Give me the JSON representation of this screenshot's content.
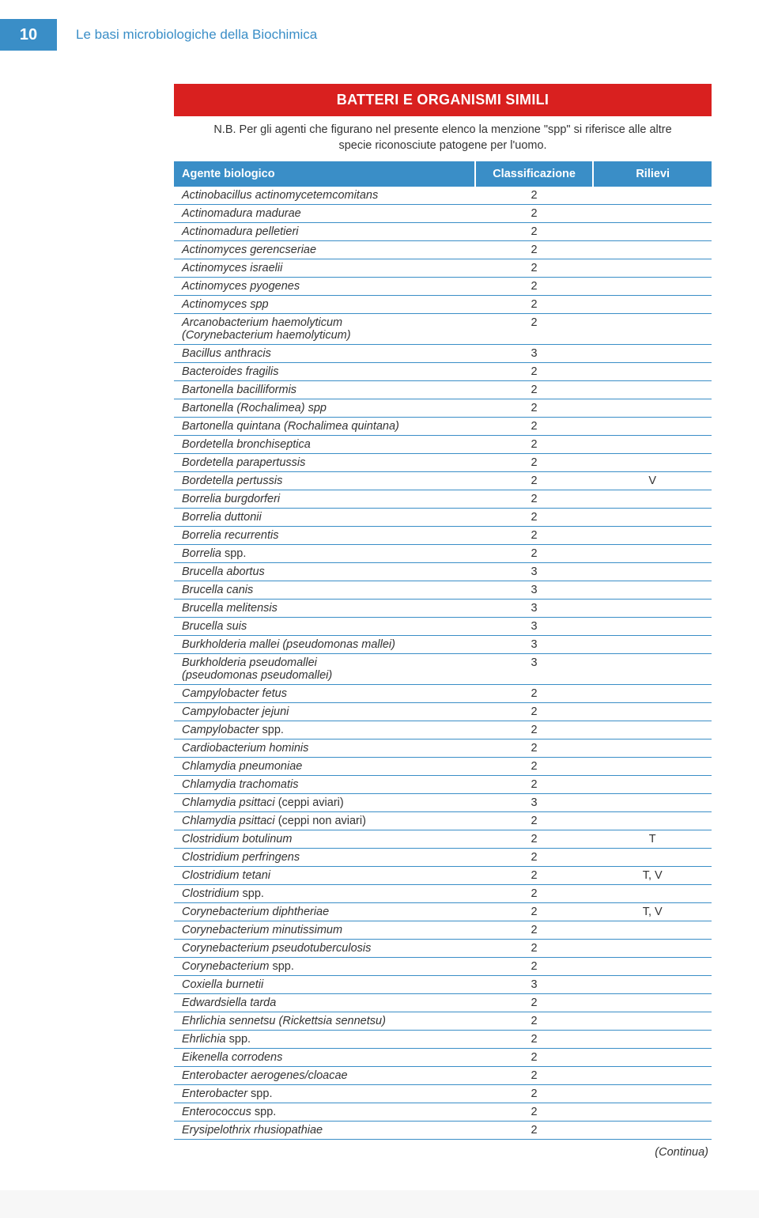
{
  "header": {
    "page_number": "10",
    "chapter_title": "Le basi microbiologiche della Biochimica"
  },
  "table": {
    "title_bar": "BATTERI E ORGANISMI SIMILI",
    "note": "N.B. Per gli agenti che figurano nel presente elenco la menzione \"spp\" si riferisce alle altre specie riconosciute patogene per l'uomo.",
    "columns": {
      "agent": "Agente biologico",
      "class": "Classificazione",
      "notes": "Rilievi"
    },
    "rows": [
      {
        "agent_it": "Actinobacillus actinomycetemcomitans",
        "class": "2",
        "rilievi": ""
      },
      {
        "agent_it": "Actinomadura madurae",
        "class": "2",
        "rilievi": ""
      },
      {
        "agent_it": "Actinomadura pelletieri",
        "class": "2",
        "rilievi": ""
      },
      {
        "agent_it": "Actinomyces gerencseriae",
        "class": "2",
        "rilievi": ""
      },
      {
        "agent_it": "Actinomyces israelii",
        "class": "2",
        "rilievi": ""
      },
      {
        "agent_it": "Actinomyces pyogenes",
        "class": "2",
        "rilievi": ""
      },
      {
        "agent_it": "Actinomyces spp",
        "class": "2",
        "rilievi": ""
      },
      {
        "agent_it": "Arcanobacterium haemolyticum",
        "agent_sub": "(Corynebacterium haemolyticum)",
        "class": "2",
        "rilievi": ""
      },
      {
        "agent_it": "Bacillus anthracis",
        "class": "3",
        "rilievi": ""
      },
      {
        "agent_it": "Bacteroides fragilis",
        "class": "2",
        "rilievi": ""
      },
      {
        "agent_it": "Bartonella bacilliformis",
        "class": "2",
        "rilievi": ""
      },
      {
        "agent_it": "Bartonella (Rochalimea) spp",
        "class": "2",
        "rilievi": ""
      },
      {
        "agent_it": "Bartonella quintana (Rochalimea quintana)",
        "class": "2",
        "rilievi": ""
      },
      {
        "agent_it": "Bordetella bronchiseptica",
        "class": "2",
        "rilievi": ""
      },
      {
        "agent_it": "Bordetella parapertussis",
        "class": "2",
        "rilievi": ""
      },
      {
        "agent_it": "Bordetella pertussis",
        "class": "2",
        "rilievi": "V"
      },
      {
        "agent_it": "Borrelia burgdorferi",
        "class": "2",
        "rilievi": ""
      },
      {
        "agent_it": "Borrelia duttonii",
        "class": "2",
        "rilievi": ""
      },
      {
        "agent_it": "Borrelia recurrentis",
        "class": "2",
        "rilievi": ""
      },
      {
        "agent_it": "Borrelia",
        "agent_roman": " spp.",
        "class": "2",
        "rilievi": ""
      },
      {
        "agent_it": "Brucella abortus",
        "class": "3",
        "rilievi": ""
      },
      {
        "agent_it": "Brucella canis",
        "class": "3",
        "rilievi": ""
      },
      {
        "agent_it": "Brucella melitensis",
        "class": "3",
        "rilievi": ""
      },
      {
        "agent_it": "Brucella suis",
        "class": "3",
        "rilievi": ""
      },
      {
        "agent_it": "Burkholderia mallei (pseudomonas mallei)",
        "class": "3",
        "rilievi": ""
      },
      {
        "agent_it": "Burkholderia pseudomallei",
        "agent_sub": "(pseudomonas pseudomallei)",
        "class": "3",
        "rilievi": ""
      },
      {
        "agent_it": "Campylobacter fetus",
        "class": "2",
        "rilievi": ""
      },
      {
        "agent_it": "Campylobacter jejuni",
        "class": "2",
        "rilievi": ""
      },
      {
        "agent_it": "Campylobacter",
        "agent_roman": " spp.",
        "class": "2",
        "rilievi": ""
      },
      {
        "agent_it": "Cardiobacterium hominis",
        "class": "2",
        "rilievi": ""
      },
      {
        "agent_it": "Chlamydia pneumoniae",
        "class": "2",
        "rilievi": ""
      },
      {
        "agent_it": "Chlamydia trachomatis",
        "class": "2",
        "rilievi": ""
      },
      {
        "agent_it": "Chlamydia psittaci",
        "agent_roman": " (ceppi aviari)",
        "class": "3",
        "rilievi": ""
      },
      {
        "agent_it": "Chlamydia psittaci",
        "agent_roman": " (ceppi non aviari)",
        "class": "2",
        "rilievi": ""
      },
      {
        "agent_it": "Clostridium botulinum",
        "class": "2",
        "rilievi": "T"
      },
      {
        "agent_it": "Clostridium perfringens",
        "class": "2",
        "rilievi": ""
      },
      {
        "agent_it": "Clostridium tetani",
        "class": "2",
        "rilievi": "T, V"
      },
      {
        "agent_it": "Clostridium",
        "agent_roman": " spp.",
        "class": "2",
        "rilievi": ""
      },
      {
        "agent_it": "Corynebacterium diphtheriae",
        "class": "2",
        "rilievi": "T, V"
      },
      {
        "agent_it": "Corynebacterium minutissimum",
        "class": "2",
        "rilievi": ""
      },
      {
        "agent_it": "Corynebacterium pseudotuberculosis",
        "class": "2",
        "rilievi": ""
      },
      {
        "agent_it": "Corynebacterium",
        "agent_roman": " spp.",
        "class": "2",
        "rilievi": ""
      },
      {
        "agent_it": "Coxiella burnetii",
        "class": "3",
        "rilievi": ""
      },
      {
        "agent_it": "Edwardsiella tarda",
        "class": "2",
        "rilievi": ""
      },
      {
        "agent_it": "Ehrlichia sennetsu (Rickettsia sennetsu)",
        "class": "2",
        "rilievi": ""
      },
      {
        "agent_it": "Ehrlichia",
        "agent_roman": " spp.",
        "class": "2",
        "rilievi": ""
      },
      {
        "agent_it": "Eikenella corrodens",
        "class": "2",
        "rilievi": ""
      },
      {
        "agent_it": "Enterobacter aerogenes/cloacae",
        "class": "2",
        "rilievi": ""
      },
      {
        "agent_it": "Enterobacter",
        "agent_roman": " spp.",
        "class": "2",
        "rilievi": ""
      },
      {
        "agent_it": "Enterococcus",
        "agent_roman": " spp.",
        "class": "2",
        "rilievi": ""
      },
      {
        "agent_it": "Erysipelothrix rhusiopathiae",
        "class": "2",
        "rilievi": ""
      }
    ],
    "continued": "(Continua)"
  }
}
